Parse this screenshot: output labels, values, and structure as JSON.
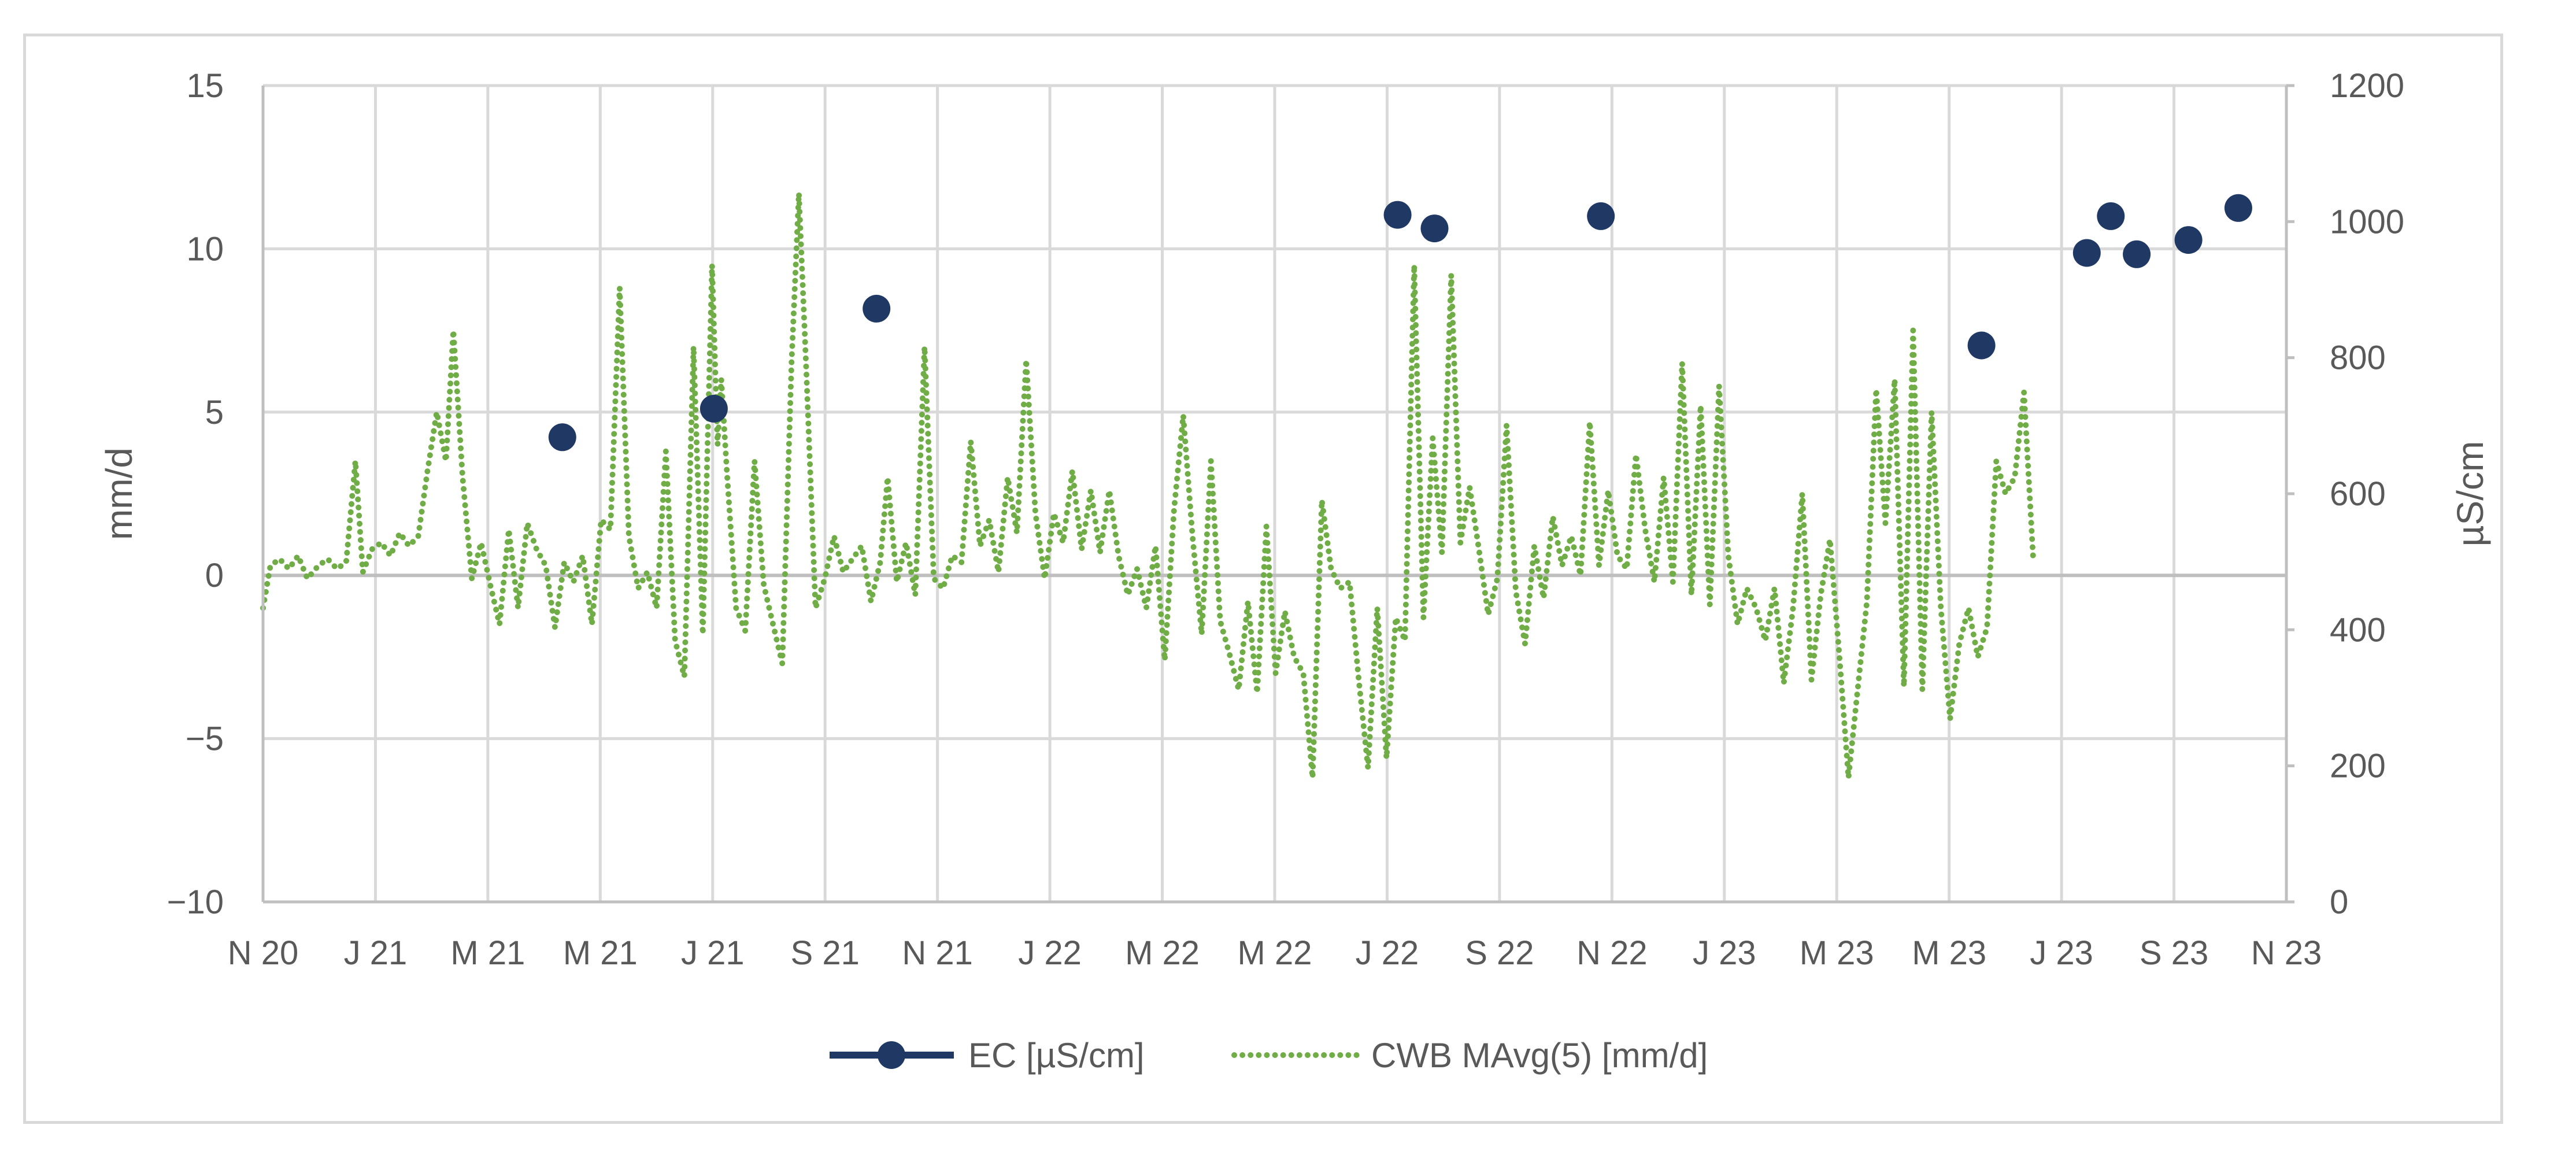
{
  "chart_data": {
    "type": "line",
    "x_tick_labels": [
      "N 20",
      "J 21",
      "M 21",
      "M 21",
      "J 21",
      "S 21",
      "N 21",
      "J 22",
      "M 22",
      "M 22",
      "J 22",
      "S 22",
      "N 22",
      "J 23",
      "M 23",
      "M 23",
      "J 23",
      "S 23",
      "N 23"
    ],
    "xlim": [
      "2020-11-01",
      "2023-11-01"
    ],
    "ylabel_left": "mm/d",
    "ylabel_right": "µS/cm",
    "ylim_left": [
      -10,
      15
    ],
    "ylim_right": [
      0,
      1200
    ],
    "yticks_left": [
      "15",
      "10",
      "5",
      "0",
      "−5",
      "−10"
    ],
    "yticks_right": [
      "1200",
      "1000",
      "800",
      "600",
      "400",
      "200",
      "0"
    ],
    "grid": true,
    "legend_position": "bottom",
    "colors": {
      "ec": "#203864",
      "cwb": "#70ad47",
      "grid": "#d9d9d9",
      "axis": "#bfbfbf"
    },
    "series": [
      {
        "name": "EC [µS/cm]",
        "axis": "right",
        "style": "markers",
        "points": [
          [
            "2021-04-12",
            683
          ],
          [
            "2021-07-03",
            725
          ],
          [
            "2021-09-29",
            872
          ],
          [
            "2022-07-08",
            1010
          ],
          [
            "2022-07-28",
            990
          ],
          [
            "2022-10-26",
            1008
          ],
          [
            "2023-05-20",
            818
          ],
          [
            "2023-07-16",
            954
          ],
          [
            "2023-07-29",
            1008
          ],
          [
            "2023-08-12",
            952
          ],
          [
            "2023-09-09",
            973
          ],
          [
            "2023-10-06",
            1020
          ]
        ]
      },
      {
        "name": "CWB MAvg(5) [mm/d]",
        "axis": "left",
        "style": "dotted",
        "points": [
          [
            "2020-11-01",
            -1.0
          ],
          [
            "2020-11-05",
            0.3
          ],
          [
            "2020-11-10",
            0.5
          ],
          [
            "2020-11-15",
            0.2
          ],
          [
            "2020-11-20",
            0.6
          ],
          [
            "2020-11-25",
            -0.1
          ],
          [
            "2020-12-01",
            0.3
          ],
          [
            "2020-12-06",
            0.5
          ],
          [
            "2020-12-11",
            0.2
          ],
          [
            "2020-12-16",
            0.4
          ],
          [
            "2020-12-21",
            3.5
          ],
          [
            "2020-12-25",
            0.1
          ],
          [
            "2020-12-30",
            0.8
          ],
          [
            "2021-01-04",
            1.0
          ],
          [
            "2021-01-09",
            0.6
          ],
          [
            "2021-01-14",
            1.3
          ],
          [
            "2021-01-19",
            0.9
          ],
          [
            "2021-01-24",
            1.2
          ],
          [
            "2021-01-29",
            3.2
          ],
          [
            "2021-02-03",
            5.0
          ],
          [
            "2021-02-08",
            3.5
          ],
          [
            "2021-02-12",
            7.5
          ],
          [
            "2021-02-17",
            3.0
          ],
          [
            "2021-02-22",
            -0.1
          ],
          [
            "2021-02-27",
            1.0
          ],
          [
            "2021-03-04",
            -0.3
          ],
          [
            "2021-03-09",
            -1.5
          ],
          [
            "2021-03-14",
            1.4
          ],
          [
            "2021-03-19",
            -1.0
          ],
          [
            "2021-03-24",
            1.6
          ],
          [
            "2021-03-29",
            0.8
          ],
          [
            "2021-04-03",
            0.3
          ],
          [
            "2021-04-08",
            -1.6
          ],
          [
            "2021-04-13",
            0.4
          ],
          [
            "2021-04-18",
            -0.2
          ],
          [
            "2021-04-23",
            0.6
          ],
          [
            "2021-04-28",
            -1.5
          ],
          [
            "2021-05-03",
            1.7
          ],
          [
            "2021-05-08",
            1.4
          ],
          [
            "2021-05-13",
            8.8
          ],
          [
            "2021-05-18",
            1.2
          ],
          [
            "2021-05-23",
            -0.4
          ],
          [
            "2021-05-28",
            0.1
          ],
          [
            "2021-06-02",
            -1.0
          ],
          [
            "2021-06-07",
            3.8
          ],
          [
            "2021-06-12",
            -2.0
          ],
          [
            "2021-06-17",
            -3.1
          ],
          [
            "2021-06-22",
            7.0
          ],
          [
            "2021-06-27",
            -1.8
          ],
          [
            "2021-07-02",
            9.5
          ],
          [
            "2021-07-05",
            4.0
          ],
          [
            "2021-07-07",
            6.0
          ],
          [
            "2021-07-10",
            3.2
          ],
          [
            "2021-07-15",
            -1.0
          ],
          [
            "2021-07-20",
            -1.7
          ],
          [
            "2021-07-25",
            3.5
          ],
          [
            "2021-07-30",
            -0.3
          ],
          [
            "2021-08-04",
            -1.5
          ],
          [
            "2021-08-09",
            -2.7
          ],
          [
            "2021-08-14",
            6.5
          ],
          [
            "2021-08-18",
            11.7
          ],
          [
            "2021-08-22",
            6.3
          ],
          [
            "2021-08-27",
            -1.0
          ],
          [
            "2021-09-01",
            -0.1
          ],
          [
            "2021-09-06",
            1.2
          ],
          [
            "2021-09-11",
            0.1
          ],
          [
            "2021-09-16",
            0.5
          ],
          [
            "2021-09-21",
            0.9
          ],
          [
            "2021-09-26",
            -0.8
          ],
          [
            "2021-10-01",
            0.4
          ],
          [
            "2021-10-05",
            3.0
          ],
          [
            "2021-10-10",
            -0.2
          ],
          [
            "2021-10-15",
            1.0
          ],
          [
            "2021-10-20",
            -0.6
          ],
          [
            "2021-10-25",
            7.0
          ],
          [
            "2021-10-30",
            -0.1
          ],
          [
            "2021-11-04",
            -0.4
          ],
          [
            "2021-11-09",
            0.6
          ],
          [
            "2021-11-14",
            0.4
          ],
          [
            "2021-11-19",
            4.1
          ],
          [
            "2021-11-24",
            0.9
          ],
          [
            "2021-11-29",
            1.7
          ],
          [
            "2021-12-04",
            0.1
          ],
          [
            "2021-12-09",
            3.0
          ],
          [
            "2021-12-14",
            1.3
          ],
          [
            "2021-12-19",
            6.6
          ],
          [
            "2021-12-24",
            1.9
          ],
          [
            "2021-12-29",
            -0.1
          ],
          [
            "2022-01-03",
            1.9
          ],
          [
            "2022-01-08",
            1.0
          ],
          [
            "2022-01-13",
            3.2
          ],
          [
            "2022-01-18",
            0.8
          ],
          [
            "2022-01-23",
            2.6
          ],
          [
            "2022-01-28",
            0.7
          ],
          [
            "2022-02-02",
            2.6
          ],
          [
            "2022-02-07",
            0.6
          ],
          [
            "2022-02-12",
            -0.6
          ],
          [
            "2022-02-17",
            0.2
          ],
          [
            "2022-02-22",
            -1.0
          ],
          [
            "2022-02-27",
            0.9
          ],
          [
            "2022-03-04",
            -2.6
          ],
          [
            "2022-03-09",
            2.0
          ],
          [
            "2022-03-14",
            4.9
          ],
          [
            "2022-03-19",
            1.2
          ],
          [
            "2022-03-24",
            -1.8
          ],
          [
            "2022-03-29",
            3.5
          ],
          [
            "2022-04-03",
            -1.4
          ],
          [
            "2022-04-08",
            -2.4
          ],
          [
            "2022-04-13",
            -3.5
          ],
          [
            "2022-04-18",
            -0.8
          ],
          [
            "2022-04-23",
            -3.6
          ],
          [
            "2022-04-28",
            1.5
          ],
          [
            "2022-05-03",
            -3.0
          ],
          [
            "2022-05-08",
            -1.1
          ],
          [
            "2022-05-13",
            -2.5
          ],
          [
            "2022-05-18",
            -3.0
          ],
          [
            "2022-05-23",
            -6.2
          ],
          [
            "2022-05-28",
            2.3
          ],
          [
            "2022-06-02",
            0.2
          ],
          [
            "2022-06-07",
            -0.4
          ],
          [
            "2022-06-12",
            -0.2
          ],
          [
            "2022-06-17",
            -3.2
          ],
          [
            "2022-06-22",
            -5.9
          ],
          [
            "2022-06-27",
            -1.0
          ],
          [
            "2022-07-02",
            -5.6
          ],
          [
            "2022-07-07",
            -1.3
          ],
          [
            "2022-07-12",
            -2.0
          ],
          [
            "2022-07-17",
            9.5
          ],
          [
            "2022-07-22",
            -1.3
          ],
          [
            "2022-07-27",
            4.2
          ],
          [
            "2022-08-01",
            0.7
          ],
          [
            "2022-08-06",
            9.2
          ],
          [
            "2022-08-11",
            1.0
          ],
          [
            "2022-08-16",
            2.7
          ],
          [
            "2022-08-21",
            0.8
          ],
          [
            "2022-08-26",
            -1.2
          ],
          [
            "2022-08-31",
            -0.1
          ],
          [
            "2022-09-05",
            4.6
          ],
          [
            "2022-09-10",
            -0.5
          ],
          [
            "2022-09-15",
            -2.1
          ],
          [
            "2022-09-20",
            0.9
          ],
          [
            "2022-09-25",
            -0.7
          ],
          [
            "2022-09-30",
            1.8
          ],
          [
            "2022-10-05",
            0.3
          ],
          [
            "2022-10-10",
            1.2
          ],
          [
            "2022-10-15",
            0.0
          ],
          [
            "2022-10-20",
            4.7
          ],
          [
            "2022-10-25",
            0.3
          ],
          [
            "2022-10-30",
            2.6
          ],
          [
            "2022-11-04",
            0.6
          ],
          [
            "2022-11-09",
            0.2
          ],
          [
            "2022-11-14",
            3.7
          ],
          [
            "2022-11-19",
            1.4
          ],
          [
            "2022-11-24",
            -0.2
          ],
          [
            "2022-11-29",
            3.0
          ],
          [
            "2022-12-04",
            -0.2
          ],
          [
            "2022-12-09",
            6.5
          ],
          [
            "2022-12-14",
            -0.6
          ],
          [
            "2022-12-19",
            5.2
          ],
          [
            "2022-12-24",
            -0.9
          ],
          [
            "2022-12-29",
            5.8
          ],
          [
            "2023-01-03",
            0.6
          ],
          [
            "2023-01-08",
            -1.5
          ],
          [
            "2023-01-13",
            -0.4
          ],
          [
            "2023-01-18",
            -1.0
          ],
          [
            "2023-01-23",
            -2.0
          ],
          [
            "2023-01-28",
            -0.4
          ],
          [
            "2023-02-02",
            -3.3
          ],
          [
            "2023-02-07",
            -1.0
          ],
          [
            "2023-02-12",
            2.5
          ],
          [
            "2023-02-17",
            -3.2
          ],
          [
            "2023-02-22",
            -0.6
          ],
          [
            "2023-02-27",
            1.1
          ],
          [
            "2023-03-04",
            -2.4
          ],
          [
            "2023-03-09",
            -6.2
          ],
          [
            "2023-03-14",
            -3.5
          ],
          [
            "2023-03-19",
            -0.8
          ],
          [
            "2023-03-24",
            5.7
          ],
          [
            "2023-03-29",
            1.6
          ],
          [
            "2023-04-03",
            6.0
          ],
          [
            "2023-04-08",
            -3.4
          ],
          [
            "2023-04-13",
            7.5
          ],
          [
            "2023-04-18",
            -3.5
          ],
          [
            "2023-04-23",
            5.0
          ],
          [
            "2023-04-28",
            -1.0
          ],
          [
            "2023-05-03",
            -4.4
          ],
          [
            "2023-05-08",
            -2.1
          ],
          [
            "2023-05-13",
            -1.0
          ],
          [
            "2023-05-18",
            -2.5
          ],
          [
            "2023-05-23",
            -1.6
          ],
          [
            "2023-05-28",
            3.5
          ],
          [
            "2023-06-02",
            2.5
          ],
          [
            "2023-06-07",
            3.0
          ],
          [
            "2023-06-12",
            5.6
          ],
          [
            "2023-06-17",
            0.5
          ]
        ]
      }
    ]
  }
}
